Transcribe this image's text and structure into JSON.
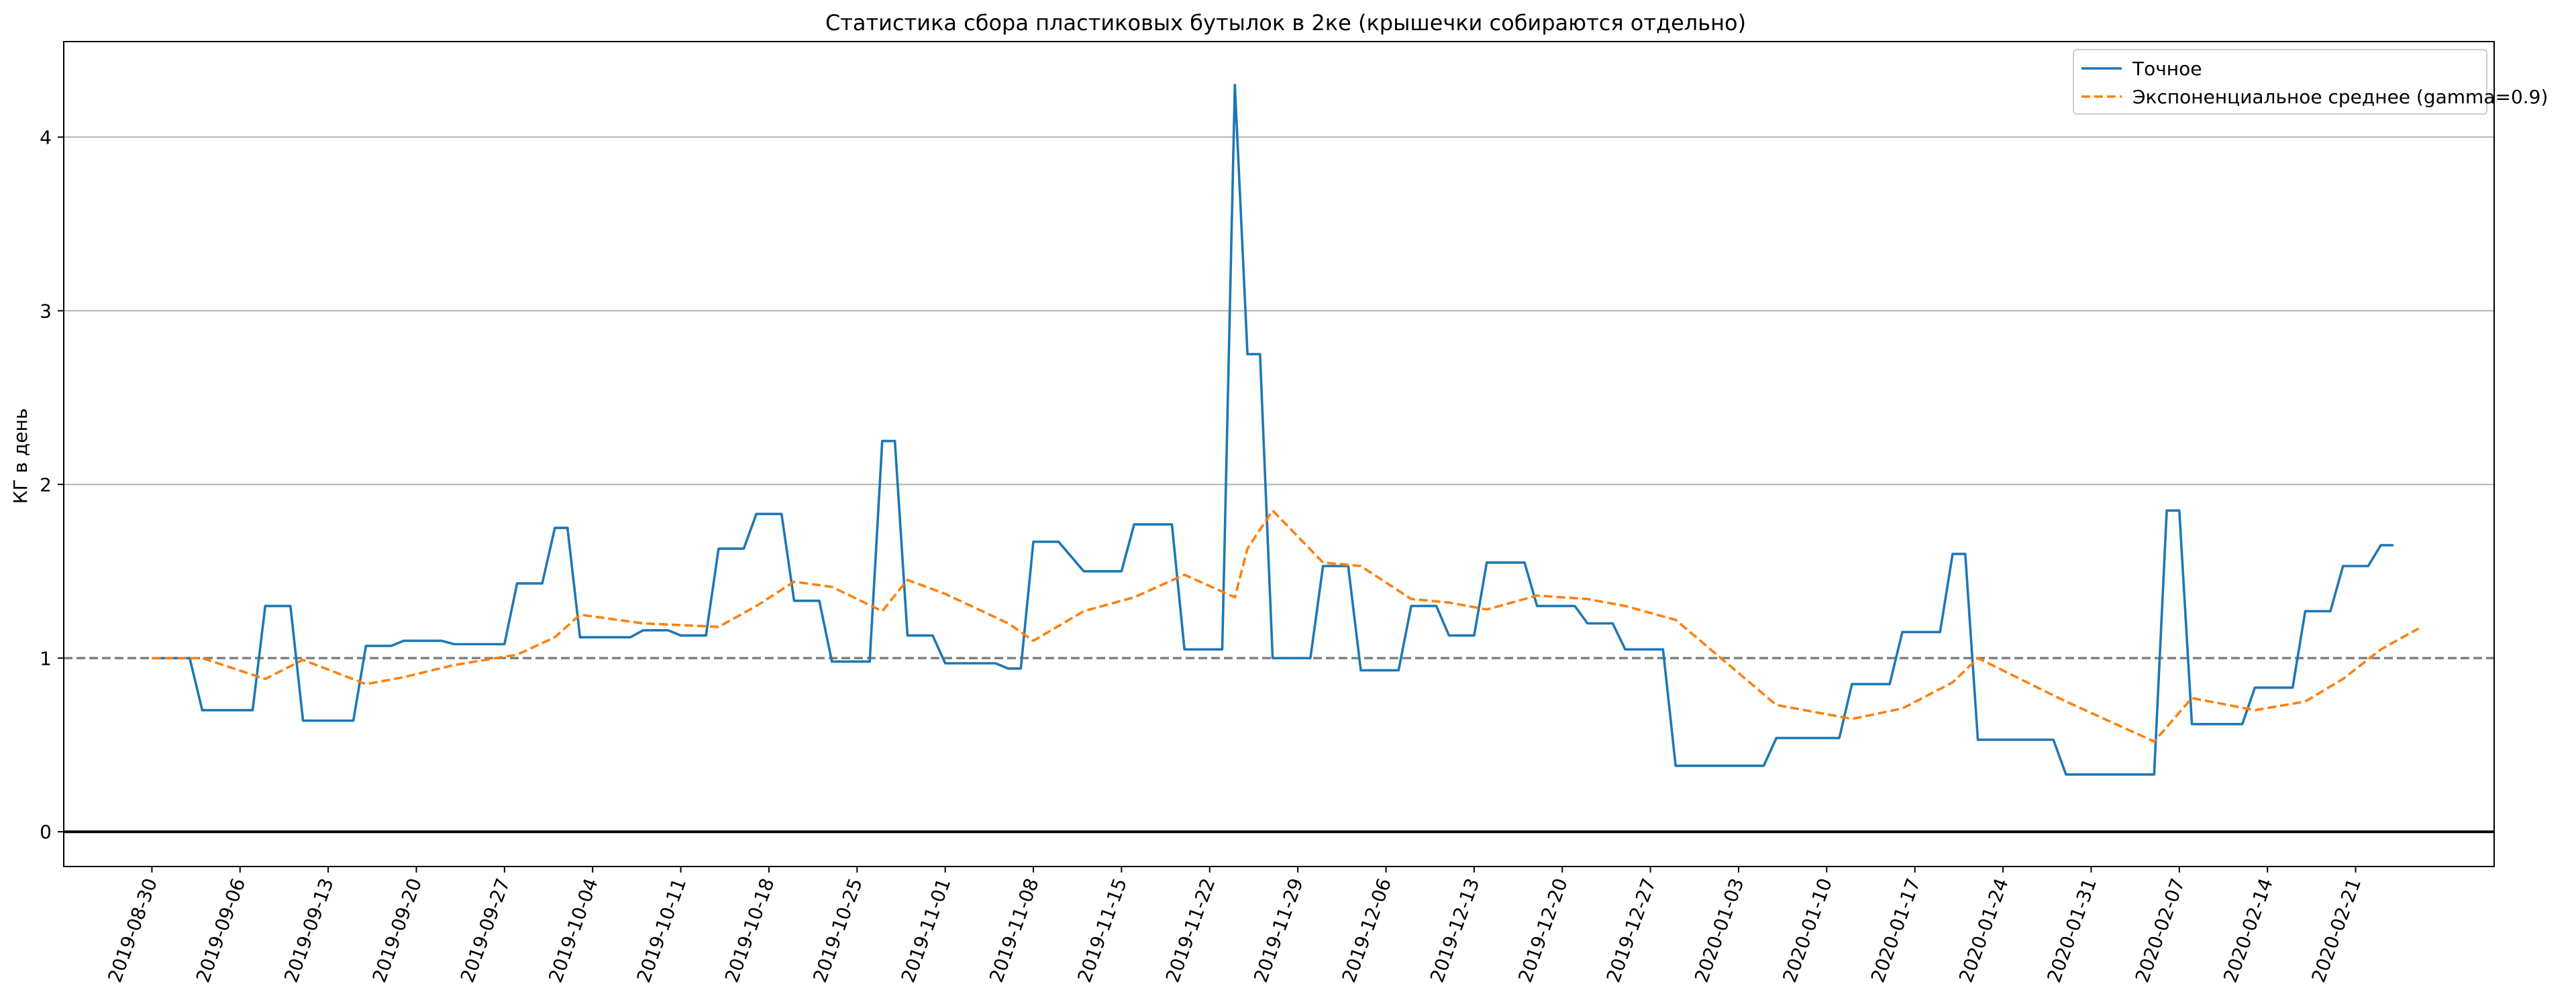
{
  "chart_data": {
    "type": "line",
    "title": "Статистика сбора пластиковых бутылок в 2ке (крышечки собираются отдельно)",
    "xlabel": "",
    "ylabel": "КГ в день",
    "ylim": [
      -0.2,
      4.55
    ],
    "xlim": [
      "2019-08-23",
      "2020-03-03"
    ],
    "yticks": [
      0,
      1,
      2,
      3,
      4
    ],
    "y_grid": true,
    "x_grid": false,
    "legend_position": "top-right",
    "xtick_labels": [
      "2019-08-30",
      "2019-09-06",
      "2019-09-13",
      "2019-09-20",
      "2019-09-27",
      "2019-10-04",
      "2019-10-11",
      "2019-10-18",
      "2019-10-25",
      "2019-11-01",
      "2019-11-08",
      "2019-11-15",
      "2019-11-22",
      "2019-11-29",
      "2019-12-06",
      "2019-12-13",
      "2019-12-20",
      "2019-12-27",
      "2020-01-03",
      "2020-01-10",
      "2020-01-17",
      "2020-01-24",
      "2020-01-31",
      "2020-02-07",
      "2020-02-14",
      "2020-02-21"
    ],
    "reference_lines": [
      {
        "y": 1,
        "style": "dashed",
        "color": "#808080"
      },
      {
        "y": 0,
        "style": "solid",
        "color": "#000000"
      }
    ],
    "series": [
      {
        "name": "Точное",
        "color": "#1f77b4",
        "style": "solid",
        "points": [
          {
            "x": "2019-08-30",
            "y": 1.0
          },
          {
            "x": "2019-09-02",
            "y": 1.0
          },
          {
            "x": "2019-09-03",
            "y": 0.7
          },
          {
            "x": "2019-09-07",
            "y": 0.7
          },
          {
            "x": "2019-09-08",
            "y": 1.3
          },
          {
            "x": "2019-09-10",
            "y": 1.3
          },
          {
            "x": "2019-09-11",
            "y": 0.64
          },
          {
            "x": "2019-09-15",
            "y": 0.64
          },
          {
            "x": "2019-09-16",
            "y": 1.07
          },
          {
            "x": "2019-09-18",
            "y": 1.07
          },
          {
            "x": "2019-09-19",
            "y": 1.1
          },
          {
            "x": "2019-09-22",
            "y": 1.1
          },
          {
            "x": "2019-09-23",
            "y": 1.08
          },
          {
            "x": "2019-09-27",
            "y": 1.08
          },
          {
            "x": "2019-09-28",
            "y": 1.43
          },
          {
            "x": "2019-09-30",
            "y": 1.43
          },
          {
            "x": "2019-10-01",
            "y": 1.75
          },
          {
            "x": "2019-10-02",
            "y": 1.75
          },
          {
            "x": "2019-10-03",
            "y": 1.12
          },
          {
            "x": "2019-10-07",
            "y": 1.12
          },
          {
            "x": "2019-10-08",
            "y": 1.16
          },
          {
            "x": "2019-10-10",
            "y": 1.16
          },
          {
            "x": "2019-10-11",
            "y": 1.13
          },
          {
            "x": "2019-10-13",
            "y": 1.13
          },
          {
            "x": "2019-10-14",
            "y": 1.63
          },
          {
            "x": "2019-10-16",
            "y": 1.63
          },
          {
            "x": "2019-10-17",
            "y": 1.83
          },
          {
            "x": "2019-10-19",
            "y": 1.83
          },
          {
            "x": "2019-10-20",
            "y": 1.33
          },
          {
            "x": "2019-10-22",
            "y": 1.33
          },
          {
            "x": "2019-10-23",
            "y": 0.98
          },
          {
            "x": "2019-10-26",
            "y": 0.98
          },
          {
            "x": "2019-10-27",
            "y": 2.25
          },
          {
            "x": "2019-10-28",
            "y": 2.25
          },
          {
            "x": "2019-10-29",
            "y": 1.13
          },
          {
            "x": "2019-10-31",
            "y": 1.13
          },
          {
            "x": "2019-11-01",
            "y": 0.97
          },
          {
            "x": "2019-11-05",
            "y": 0.97
          },
          {
            "x": "2019-11-06",
            "y": 0.94
          },
          {
            "x": "2019-11-07",
            "y": 0.94
          },
          {
            "x": "2019-11-08",
            "y": 1.67
          },
          {
            "x": "2019-11-10",
            "y": 1.67
          },
          {
            "x": "2019-11-12",
            "y": 1.5
          },
          {
            "x": "2019-11-15",
            "y": 1.5
          },
          {
            "x": "2019-11-16",
            "y": 1.77
          },
          {
            "x": "2019-11-19",
            "y": 1.77
          },
          {
            "x": "2019-11-20",
            "y": 1.05
          },
          {
            "x": "2019-11-23",
            "y": 1.05
          },
          {
            "x": "2019-11-24",
            "y": 4.3
          },
          {
            "x": "2019-11-25",
            "y": 2.75
          },
          {
            "x": "2019-11-26",
            "y": 2.75
          },
          {
            "x": "2019-11-27",
            "y": 1.0
          },
          {
            "x": "2019-11-30",
            "y": 1.0
          },
          {
            "x": "2019-12-01",
            "y": 1.53
          },
          {
            "x": "2019-12-03",
            "y": 1.53
          },
          {
            "x": "2019-12-04",
            "y": 0.93
          },
          {
            "x": "2019-12-07",
            "y": 0.93
          },
          {
            "x": "2019-12-08",
            "y": 1.3
          },
          {
            "x": "2019-12-10",
            "y": 1.3
          },
          {
            "x": "2019-12-11",
            "y": 1.13
          },
          {
            "x": "2019-12-13",
            "y": 1.13
          },
          {
            "x": "2019-12-14",
            "y": 1.55
          },
          {
            "x": "2019-12-17",
            "y": 1.55
          },
          {
            "x": "2019-12-18",
            "y": 1.3
          },
          {
            "x": "2019-12-21",
            "y": 1.3
          },
          {
            "x": "2019-12-22",
            "y": 1.2
          },
          {
            "x": "2019-12-24",
            "y": 1.2
          },
          {
            "x": "2019-12-25",
            "y": 1.05
          },
          {
            "x": "2019-12-28",
            "y": 1.05
          },
          {
            "x": "2019-12-29",
            "y": 0.38
          },
          {
            "x": "2020-01-05",
            "y": 0.38
          },
          {
            "x": "2020-01-06",
            "y": 0.54
          },
          {
            "x": "2020-01-11",
            "y": 0.54
          },
          {
            "x": "2020-01-12",
            "y": 0.85
          },
          {
            "x": "2020-01-15",
            "y": 0.85
          },
          {
            "x": "2020-01-16",
            "y": 1.15
          },
          {
            "x": "2020-01-19",
            "y": 1.15
          },
          {
            "x": "2020-01-20",
            "y": 1.6
          },
          {
            "x": "2020-01-21",
            "y": 1.6
          },
          {
            "x": "2020-01-22",
            "y": 0.53
          },
          {
            "x": "2020-01-28",
            "y": 0.53
          },
          {
            "x": "2020-01-29",
            "y": 0.33
          },
          {
            "x": "2020-02-05",
            "y": 0.33
          },
          {
            "x": "2020-02-06",
            "y": 1.85
          },
          {
            "x": "2020-02-07",
            "y": 1.85
          },
          {
            "x": "2020-02-08",
            "y": 0.62
          },
          {
            "x": "2020-02-12",
            "y": 0.62
          },
          {
            "x": "2020-02-13",
            "y": 0.83
          },
          {
            "x": "2020-02-16",
            "y": 0.83
          },
          {
            "x": "2020-02-17",
            "y": 1.27
          },
          {
            "x": "2020-02-19",
            "y": 1.27
          },
          {
            "x": "2020-02-20",
            "y": 1.53
          },
          {
            "x": "2020-02-22",
            "y": 1.53
          },
          {
            "x": "2020-02-23",
            "y": 1.65
          },
          {
            "x": "2020-02-24",
            "y": 1.65
          }
        ]
      },
      {
        "name": "Экспоненциальное среднее (gamma=0.9)",
        "color": "#ff7f0e",
        "style": "dashed",
        "points": [
          {
            "x": "2019-08-30",
            "y": 1.0
          },
          {
            "x": "2019-09-03",
            "y": 1.0
          },
          {
            "x": "2019-09-08",
            "y": 0.88
          },
          {
            "x": "2019-09-11",
            "y": 0.99
          },
          {
            "x": "2019-09-16",
            "y": 0.85
          },
          {
            "x": "2019-09-19",
            "y": 0.89
          },
          {
            "x": "2019-09-23",
            "y": 0.96
          },
          {
            "x": "2019-09-28",
            "y": 1.02
          },
          {
            "x": "2019-10-01",
            "y": 1.12
          },
          {
            "x": "2019-10-03",
            "y": 1.25
          },
          {
            "x": "2019-10-08",
            "y": 1.2
          },
          {
            "x": "2019-10-14",
            "y": 1.18
          },
          {
            "x": "2019-10-17",
            "y": 1.3
          },
          {
            "x": "2019-10-20",
            "y": 1.44
          },
          {
            "x": "2019-10-23",
            "y": 1.41
          },
          {
            "x": "2019-10-27",
            "y": 1.27
          },
          {
            "x": "2019-10-29",
            "y": 1.45
          },
          {
            "x": "2019-11-01",
            "y": 1.37
          },
          {
            "x": "2019-11-06",
            "y": 1.2
          },
          {
            "x": "2019-11-08",
            "y": 1.1
          },
          {
            "x": "2019-11-12",
            "y": 1.27
          },
          {
            "x": "2019-11-16",
            "y": 1.35
          },
          {
            "x": "2019-11-20",
            "y": 1.48
          },
          {
            "x": "2019-11-24",
            "y": 1.35
          },
          {
            "x": "2019-11-25",
            "y": 1.63
          },
          {
            "x": "2019-11-27",
            "y": 1.85
          },
          {
            "x": "2019-12-01",
            "y": 1.55
          },
          {
            "x": "2019-12-04",
            "y": 1.53
          },
          {
            "x": "2019-12-08",
            "y": 1.34
          },
          {
            "x": "2019-12-11",
            "y": 1.32
          },
          {
            "x": "2019-12-14",
            "y": 1.28
          },
          {
            "x": "2019-12-18",
            "y": 1.36
          },
          {
            "x": "2019-12-22",
            "y": 1.34
          },
          {
            "x": "2019-12-25",
            "y": 1.3
          },
          {
            "x": "2019-12-29",
            "y": 1.22
          },
          {
            "x": "2020-01-06",
            "y": 0.73
          },
          {
            "x": "2020-01-12",
            "y": 0.65
          },
          {
            "x": "2020-01-16",
            "y": 0.71
          },
          {
            "x": "2020-01-20",
            "y": 0.86
          },
          {
            "x": "2020-01-22",
            "y": 1.0
          },
          {
            "x": "2020-01-29",
            "y": 0.75
          },
          {
            "x": "2020-02-05",
            "y": 0.52
          },
          {
            "x": "2020-02-08",
            "y": 0.77
          },
          {
            "x": "2020-02-13",
            "y": 0.7
          },
          {
            "x": "2020-02-17",
            "y": 0.75
          },
          {
            "x": "2020-02-20",
            "y": 0.88
          },
          {
            "x": "2020-02-23",
            "y": 1.05
          },
          {
            "x": "2020-02-26",
            "y": 1.17
          }
        ]
      }
    ]
  }
}
